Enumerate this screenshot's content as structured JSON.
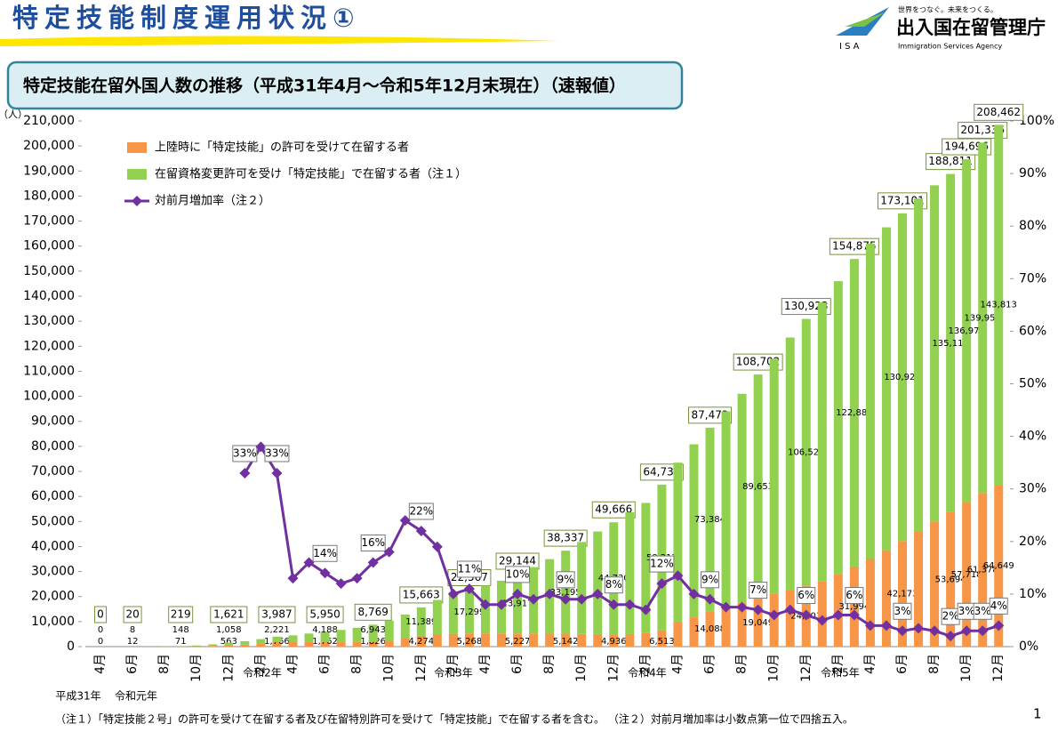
{
  "header": {
    "title": "特定技能制度運用状況①",
    "logo_tagline": "世界をつなぐ。未来をつくる。",
    "logo_name": "出入国在留管理庁",
    "logo_english": "Immigration Services Agency",
    "logo_abbr": "I S A"
  },
  "chart_data": {
    "type": "bar",
    "title": "特定技能在留外国人数の推移（平成31年4月～令和5年12月末現在）（速報値）",
    "y_unit": "（人）",
    "categories": [
      "4月",
      null,
      "6月",
      null,
      "8月",
      null,
      "10月",
      null,
      "12月",
      null,
      "2月",
      null,
      "4月",
      null,
      "6月",
      null,
      "8月",
      null,
      "10月",
      null,
      "12月",
      null,
      "2月",
      null,
      "4月",
      null,
      "6月",
      null,
      "8月",
      null,
      "10月",
      null,
      "12月",
      null,
      "2月",
      null,
      "4月",
      null,
      "6月",
      null,
      "8月",
      null,
      "10月",
      null,
      "12月",
      null,
      "2月",
      null,
      "4月",
      null,
      "6月",
      null,
      "8月",
      null,
      "10月",
      null,
      "12月"
    ],
    "era_labels": [
      "平成31年",
      "令和元年",
      "令和2年",
      "令和3年",
      "令和4年",
      "令和5年"
    ],
    "series": [
      {
        "name": "上陸時に「特定技能」の許可を受けて在留する者",
        "color": "#f79646",
        "values": [
          0,
          1,
          12,
          20,
          40,
          71,
          150,
          300,
          563,
          800,
          1200,
          1766,
          1770,
          1765,
          1762,
          1780,
          1800,
          1826,
          2300,
          3200,
          4274,
          4800,
          5100,
          5268,
          5250,
          5240,
          5227,
          5200,
          5170,
          5142,
          5080,
          5000,
          4936,
          5000,
          5400,
          6513,
          10000,
          12000,
          14088,
          16000,
          17500,
          19049,
          21000,
          22700,
          24403,
          26000,
          29000,
          31994,
          35000,
          38500,
          42173,
          46000,
          50000,
          53694,
          57718,
          61378,
          64649
        ],
        "value_labels": [
          "0",
          null,
          "12",
          null,
          null,
          "71",
          null,
          null,
          "563",
          null,
          null,
          "1,766",
          null,
          null,
          "1,762",
          null,
          null,
          "1,826",
          null,
          null,
          "4,274",
          null,
          null,
          "5,268",
          null,
          null,
          "5,227",
          null,
          null,
          "5,142",
          null,
          null,
          "4,936",
          null,
          null,
          "6,513",
          null,
          null,
          "14,088",
          null,
          null,
          "19,049",
          null,
          null,
          "24,403",
          null,
          null,
          "31,994",
          null,
          null,
          "42,173",
          null,
          null,
          "53,694",
          "57,718",
          "61,378",
          "64,649"
        ]
      },
      {
        "name": "在留資格変更許可を受け「特定技能」で在留する者（注１）",
        "color": "#92d050",
        "values": [
          0,
          1,
          8,
          20,
          60,
          148,
          300,
          600,
          1058,
          1360,
          1790,
          2221,
          2730,
          3455,
          4188,
          4880,
          5730,
          6943,
          8050,
          9630,
          11389,
          13840,
          15300,
          17299,
          19120,
          21080,
          23917,
          26570,
          29780,
          33195,
          36710,
          40970,
          44730,
          48640,
          52000,
          58217,
          63500,
          68800,
          73384,
          78000,
          83500,
          89653,
          94000,
          100800,
          106520,
          111500,
          117000,
          122881,
          126000,
          129000,
          130928,
          133000,
          134300,
          135117,
          136978,
          139958,
          143813
        ],
        "value_labels": [
          "0",
          null,
          "8",
          null,
          null,
          "148",
          null,
          null,
          "1,058",
          null,
          null,
          "2,221",
          null,
          null,
          "4,188",
          null,
          null,
          "6,943",
          null,
          null,
          "11,389",
          null,
          null,
          "17,299",
          null,
          null,
          "23,917",
          null,
          null,
          "33,195",
          null,
          null,
          "44,730",
          null,
          null,
          "58,217",
          null,
          null,
          "73,384",
          null,
          null,
          "89,653",
          null,
          null,
          "106,520",
          null,
          null,
          "122,881",
          null,
          null,
          "130,928",
          null,
          null,
          "135,117",
          "136,978",
          "139,958",
          "143,813"
        ]
      },
      {
        "name": "対前月増加率（注２）",
        "type": "line",
        "axis": "y2",
        "color": "#7030a0",
        "values": [
          null,
          null,
          null,
          null,
          null,
          null,
          null,
          null,
          null,
          33,
          38,
          33,
          13,
          16,
          14,
          12,
          13,
          16,
          18,
          24,
          22,
          19,
          10,
          11,
          8,
          8,
          10,
          9,
          10,
          9,
          9,
          10,
          8,
          8,
          7,
          12,
          13.5,
          10,
          9,
          7.5,
          7.5,
          7,
          6,
          7,
          6,
          5,
          6,
          6,
          4,
          4,
          3,
          3.5,
          3,
          2,
          3,
          3,
          4
        ],
        "value_labels": [
          null,
          null,
          null,
          null,
          null,
          null,
          null,
          null,
          null,
          "33%",
          null,
          "33%",
          null,
          null,
          "14%",
          null,
          null,
          "16%",
          null,
          null,
          "22%",
          null,
          null,
          "11%",
          null,
          null,
          "10%",
          null,
          null,
          "9%",
          null,
          null,
          "8%",
          null,
          null,
          "12%",
          null,
          null,
          "9%",
          null,
          null,
          "7%",
          null,
          null,
          "6%",
          null,
          null,
          "6%",
          null,
          null,
          "3%",
          null,
          null,
          "2%",
          "3%",
          "3%",
          "4%"
        ]
      }
    ],
    "totals": {
      "values": [
        0,
        null,
        20,
        null,
        null,
        219,
        null,
        null,
        1621,
        null,
        null,
        3987,
        null,
        null,
        5950,
        null,
        null,
        8769,
        null,
        null,
        15663,
        null,
        null,
        22567,
        null,
        null,
        29144,
        null,
        null,
        38337,
        null,
        null,
        49666,
        null,
        null,
        64730,
        null,
        null,
        87472,
        null,
        null,
        108702,
        null,
        null,
        130923,
        null,
        null,
        154875,
        null,
        null,
        173101,
        null,
        null,
        188811,
        194696,
        201336,
        208462
      ],
      "value_labels": [
        "0",
        null,
        "20",
        null,
        null,
        "219",
        null,
        null,
        "1,621",
        null,
        null,
        "3,987",
        null,
        null,
        "5,950",
        null,
        null,
        "8,769",
        null,
        null,
        "15,663",
        null,
        null,
        "22,567",
        null,
        null,
        "29,144",
        null,
        null,
        "38,337",
        null,
        null,
        "49,666",
        null,
        null,
        "64,730",
        null,
        null,
        "87,472",
        null,
        null,
        "108,702",
        null,
        null,
        "130,923",
        null,
        null,
        "154,875",
        null,
        null,
        "173,101",
        null,
        null,
        "188,811",
        "194,696",
        "201,336",
        "208,462"
      ]
    },
    "ylim": [
      0,
      210000
    ],
    "yticks": [
      0,
      {
        "value": 10000,
        "label": "10,000"
      },
      {
        "value": 20000,
        "label": "20,000"
      },
      {
        "value": 30000,
        "label": "30,000"
      },
      {
        "value": 40000,
        "label": "40,000"
      },
      {
        "value": 50000,
        "label": "50,000"
      },
      {
        "value": 60000,
        "label": "60,000"
      },
      {
        "value": 70000,
        "label": "70,000"
      },
      {
        "value": 80000,
        "label": "80,000"
      },
      {
        "value": 90000,
        "label": "90,000"
      },
      {
        "value": 100000,
        "label": "100,000"
      },
      {
        "value": 110000,
        "label": "110,000"
      },
      {
        "value": 120000,
        "label": "120,000"
      },
      {
        "value": 130000,
        "label": "130,000"
      },
      {
        "value": 140000,
        "label": "140,000"
      },
      {
        "value": 150000,
        "label": "150,000"
      },
      {
        "value": 160000,
        "label": "160,000"
      },
      {
        "value": 170000,
        "label": "170,000"
      },
      {
        "value": 180000,
        "label": "180,000"
      },
      {
        "value": 190000,
        "label": "190,000"
      },
      {
        "value": 200000,
        "label": "200,000"
      },
      {
        "value": 210000,
        "label": "210,000"
      }
    ],
    "y2lim": [
      0,
      100
    ],
    "y2ticks": [
      {
        "value": 0,
        "label": "0%"
      },
      {
        "value": 10,
        "label": "10%"
      },
      {
        "value": 20,
        "label": "20%"
      },
      {
        "value": 30,
        "label": "30%"
      },
      {
        "value": 40,
        "label": "40%"
      },
      {
        "value": 50,
        "label": "50%"
      },
      {
        "value": 60,
        "label": "60%"
      },
      {
        "value": 70,
        "label": "70%"
      },
      {
        "value": 80,
        "label": "80%"
      },
      {
        "value": 90,
        "label": "90%"
      },
      {
        "value": 100,
        "label": "100%"
      }
    ],
    "grid": false
  },
  "footnote": "（注１）「特定技能２号」の許可を受けて在留する者及び在留特別許可を受けて「特定技能」で在留する者を含む。 （注２）対前月増加率は小数点第一位で四捨五入。",
  "page_number": "1"
}
